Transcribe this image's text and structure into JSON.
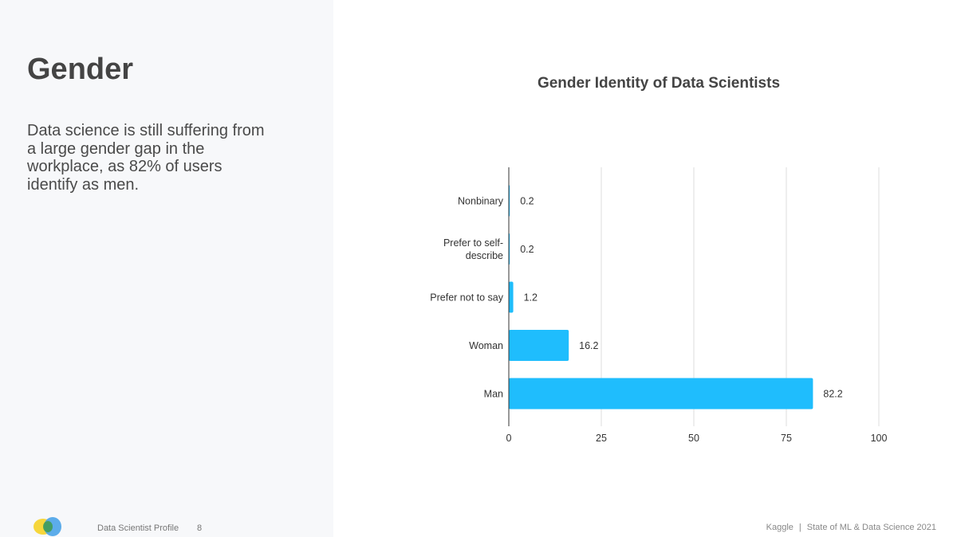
{
  "slide": {
    "title": "Gender",
    "body": "Data science is still suffering from a large gender gap in the workplace, as 82% of users identify as men."
  },
  "footer": {
    "section": "Data Scientist Profile",
    "page_number": "8",
    "brand": "Kaggle",
    "separator": "|",
    "report": "State of ML & Data Science 2021"
  },
  "colors": {
    "bar": "#1fbdfd",
    "axis": "#333333",
    "grid": "#dddddd",
    "text": "#333333"
  },
  "chart_data": {
    "type": "bar",
    "orientation": "horizontal",
    "title": "Gender Identity of Data Scientists",
    "categories": [
      "Nonbinary",
      "Prefer to self-describe",
      "Prefer not to say",
      "Woman",
      "Man"
    ],
    "category_lines": [
      [
        "Nonbinary"
      ],
      [
        "Prefer to self-",
        "describe"
      ],
      [
        "Prefer not to say"
      ],
      [
        "Woman"
      ],
      [
        "Man"
      ]
    ],
    "values": [
      0.2,
      0.2,
      1.2,
      16.2,
      82.2
    ],
    "data_labels": [
      "0.2",
      "0.2",
      "1.2",
      "16.2",
      "82.2"
    ],
    "xlim": [
      0,
      100
    ],
    "xticks": [
      0,
      25,
      50,
      75,
      100
    ],
    "xlabel": "",
    "ylabel": "",
    "grid": true,
    "legend": "none"
  }
}
